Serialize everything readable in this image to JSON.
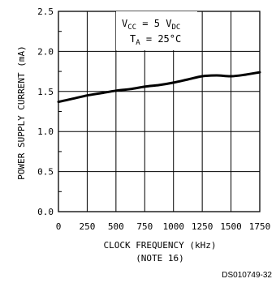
{
  "chart_data": {
    "type": "line",
    "title": "",
    "xlabel": "CLOCK FREQUENCY (kHz)",
    "xlabel_note": "(NOTE 16)",
    "ylabel": "POWER SUPPLY CURRENT (mA)",
    "xlim": [
      0,
      1750
    ],
    "ylim": [
      0.0,
      2.5
    ],
    "x_ticks": [
      0,
      250,
      500,
      750,
      1000,
      1250,
      1500,
      1750
    ],
    "x_tick_labels": [
      "0",
      "250",
      "500",
      "750",
      "1000",
      "1250",
      "1500",
      "1750"
    ],
    "y_ticks": [
      0.0,
      0.5,
      1.0,
      1.5,
      2.0,
      2.5
    ],
    "y_tick_labels": [
      "0.0",
      "0.5",
      "1.0",
      "1.5",
      "2.0",
      "2.5"
    ],
    "grid": true,
    "annotation": {
      "vcc": {
        "main": "V",
        "sub": "CC",
        "eq": " = 5 V",
        "unit_sub": "DC"
      },
      "ta": {
        "main": "T",
        "sub": "A",
        "eq": " = 25°C"
      }
    },
    "series": [
      {
        "x": [
          0,
          125,
          250,
          375,
          500,
          625,
          750,
          875,
          1000,
          1125,
          1250,
          1375,
          1500,
          1625,
          1750
        ],
        "y": [
          1.37,
          1.41,
          1.45,
          1.48,
          1.51,
          1.53,
          1.56,
          1.58,
          1.61,
          1.65,
          1.69,
          1.7,
          1.69,
          1.71,
          1.74
        ]
      }
    ]
  },
  "figure_id": "DS010749-32",
  "colors": {
    "line": "#000000",
    "grid": "#000000",
    "background": "#ffffff"
  }
}
